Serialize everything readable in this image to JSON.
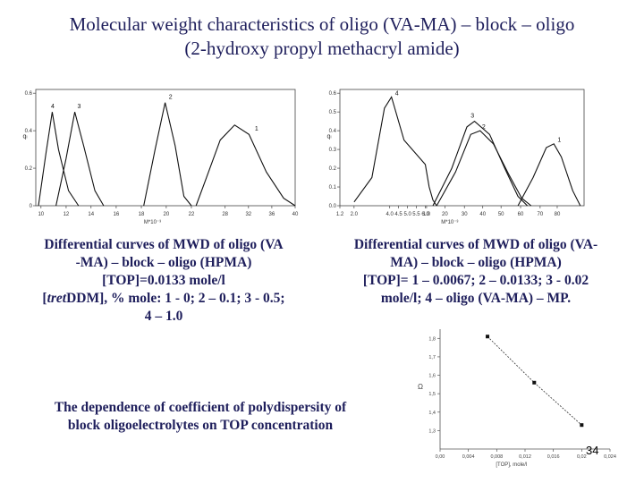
{
  "title": {
    "line1": "Molecular weight characteristics of oligo (VA-MA) – block – oligo",
    "line2": "(2-hydroxy propyl methacryl amide)"
  },
  "captions": {
    "left": {
      "line1": "Differential curves of MWD  of oligo (VA",
      "line2": "-MA) – block – oligo (HPMA)",
      "line3": "[TOP]=0.0133 mole/l",
      "line4_italic": "tret",
      "line4_rest": "DDM], % mole: 1 - 0; 2 – 0.1; 3 - 0.5;",
      "line5": "4 – 1.0"
    },
    "right": {
      "line1": "Differential curves of MWD  of oligo (VA-",
      "line2": "MA) – block – oligo (HPMA)",
      "line3": "[TOP]= 1 – 0.0067; 2 – 0.0133; 3 - 0.02",
      "line4": "mole/l; 4 – oligo (VA-MA) – MP."
    },
    "bottom": {
      "line1": "The dependence of coefficient of polydispersity of",
      "line2": "block oligoelectrolytes on TOP concentration"
    }
  },
  "page_number": "34",
  "chart_data": [
    {
      "type": "line",
      "xlabel": "M*10⁻³",
      "ylabel": "qₗ",
      "x_ticks": [
        "10",
        "12",
        "14",
        "16",
        "18",
        "20",
        "22",
        "28",
        "32",
        "36",
        "40"
      ],
      "y_ticks": [
        "0",
        "0.2",
        "0.4",
        "0.6"
      ],
      "series": [
        {
          "name": "4",
          "points": [
            [
              9.8,
              0
            ],
            [
              10.4,
              0.28
            ],
            [
              10.9,
              0.5
            ],
            [
              11.4,
              0.3
            ],
            [
              12.2,
              0.08
            ],
            [
              13,
              0
            ]
          ]
        },
        {
          "name": "3",
          "points": [
            [
              11.2,
              0
            ],
            [
              12.0,
              0.25
            ],
            [
              12.7,
              0.5
            ],
            [
              13.4,
              0.32
            ],
            [
              14.3,
              0.08
            ],
            [
              15,
              0
            ]
          ]
        },
        {
          "name": "2",
          "points": [
            [
              18.2,
              0
            ],
            [
              19.1,
              0.3
            ],
            [
              19.9,
              0.55
            ],
            [
              20.7,
              0.32
            ],
            [
              21.4,
              0.05
            ],
            [
              22,
              0
            ]
          ]
        },
        {
          "name": "1",
          "points": [
            [
              22.8,
              0
            ],
            [
              24.5,
              0.14
            ],
            [
              27,
              0.35
            ],
            [
              29.5,
              0.43
            ],
            [
              32,
              0.38
            ],
            [
              35,
              0.18
            ],
            [
              38,
              0.04
            ],
            [
              40,
              0
            ]
          ]
        }
      ]
    },
    {
      "type": "line",
      "xlabel": "M*10⁻³",
      "ylabel": "qₗ",
      "x_ticks": [
        "1.2",
        "2.0",
        "4.0",
        "4.5",
        "5.0",
        "5.5",
        "6.0",
        "1.0",
        "20",
        "30",
        "40",
        "50",
        "60",
        "70",
        "80"
      ],
      "y_ticks": [
        "0.0",
        "0.1",
        "0.2",
        "0.3",
        "0.4",
        "0.5",
        "0.6"
      ],
      "series": [
        {
          "name": "4",
          "points": [
            [
              2.0,
              0.02
            ],
            [
              3.0,
              0.15
            ],
            [
              3.7,
              0.52
            ],
            [
              4.1,
              0.58
            ],
            [
              4.8,
              0.35
            ],
            [
              6.0,
              0.22
            ],
            [
              8,
              0.1
            ],
            [
              10,
              0.03
            ],
            [
              12,
              0
            ]
          ]
        },
        {
          "name": "3",
          "points": [
            [
              10,
              0
            ],
            [
              20,
              0.2
            ],
            [
              28,
              0.42
            ],
            [
              32,
              0.45
            ],
            [
              40,
              0.38
            ],
            [
              48,
              0.2
            ],
            [
              55,
              0.05
            ],
            [
              60,
              0
            ]
          ]
        },
        {
          "name": "2",
          "points": [
            [
              12,
              0
            ],
            [
              22,
              0.18
            ],
            [
              30,
              0.38
            ],
            [
              35,
              0.4
            ],
            [
              42,
              0.33
            ],
            [
              50,
              0.17
            ],
            [
              57,
              0.04
            ],
            [
              62,
              0
            ]
          ]
        },
        {
          "name": "1",
          "points": [
            [
              55,
              0
            ],
            [
              63,
              0.15
            ],
            [
              70,
              0.31
            ],
            [
              74,
              0.33
            ],
            [
              78,
              0.26
            ],
            [
              84,
              0.08
            ],
            [
              88,
              0
            ]
          ]
        }
      ]
    },
    {
      "type": "scatter",
      "xlabel": "[TOP], mole/l",
      "ylabel": "Ω",
      "x_ticks": [
        "0,00",
        "0,004",
        "0,008",
        "0,012",
        "0,016",
        "0,02",
        "0,024"
      ],
      "y_ticks": [
        "1,3",
        "1,4",
        "1,5",
        "1,6",
        "1,7",
        "1,8"
      ],
      "xlim": [
        0,
        0.024
      ],
      "ylim": [
        1.2,
        1.85
      ],
      "points": [
        [
          0.0067,
          1.81
        ],
        [
          0.0133,
          1.56
        ],
        [
          0.02,
          1.33
        ]
      ]
    }
  ]
}
